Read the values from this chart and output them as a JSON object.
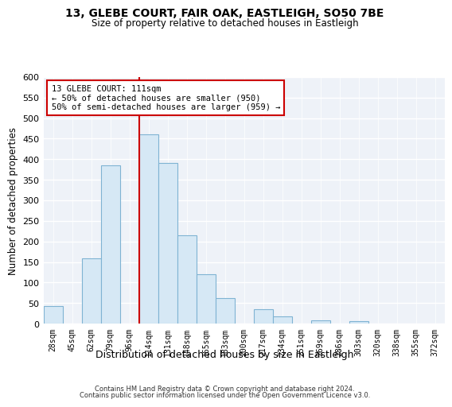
{
  "title": "13, GLEBE COURT, FAIR OAK, EASTLEIGH, SO50 7BE",
  "subtitle": "Size of property relative to detached houses in Eastleigh",
  "xlabel": "Distribution of detached houses by size in Eastleigh",
  "ylabel": "Number of detached properties",
  "bar_labels": [
    "28sqm",
    "45sqm",
    "62sqm",
    "79sqm",
    "96sqm",
    "114sqm",
    "131sqm",
    "148sqm",
    "165sqm",
    "183sqm",
    "200sqm",
    "217sqm",
    "234sqm",
    "251sqm",
    "269sqm",
    "286sqm",
    "303sqm",
    "320sqm",
    "338sqm",
    "355sqm",
    "372sqm"
  ],
  "bar_values": [
    42,
    0,
    158,
    385,
    0,
    460,
    390,
    215,
    120,
    62,
    0,
    35,
    18,
    0,
    8,
    0,
    5,
    0,
    0,
    0,
    0
  ],
  "bar_color": "#d6e8f5",
  "bar_edge_color": "#7fb3d3",
  "vline_color": "#cc0000",
  "annotation_title": "13 GLEBE COURT: 111sqm",
  "annotation_line1": "← 50% of detached houses are smaller (950)",
  "annotation_line2": "50% of semi-detached houses are larger (959) →",
  "annotation_box_color": "white",
  "annotation_box_edge": "#cc0000",
  "ylim": [
    0,
    600
  ],
  "yticks": [
    0,
    50,
    100,
    150,
    200,
    250,
    300,
    350,
    400,
    450,
    500,
    550,
    600
  ],
  "footer_line1": "Contains HM Land Registry data © Crown copyright and database right 2024.",
  "footer_line2": "Contains public sector information licensed under the Open Government Licence v3.0.",
  "bg_color": "#ffffff",
  "plot_bg_color": "#eef2f8",
  "grid_color": "#ffffff",
  "vline_bar_index": 5
}
